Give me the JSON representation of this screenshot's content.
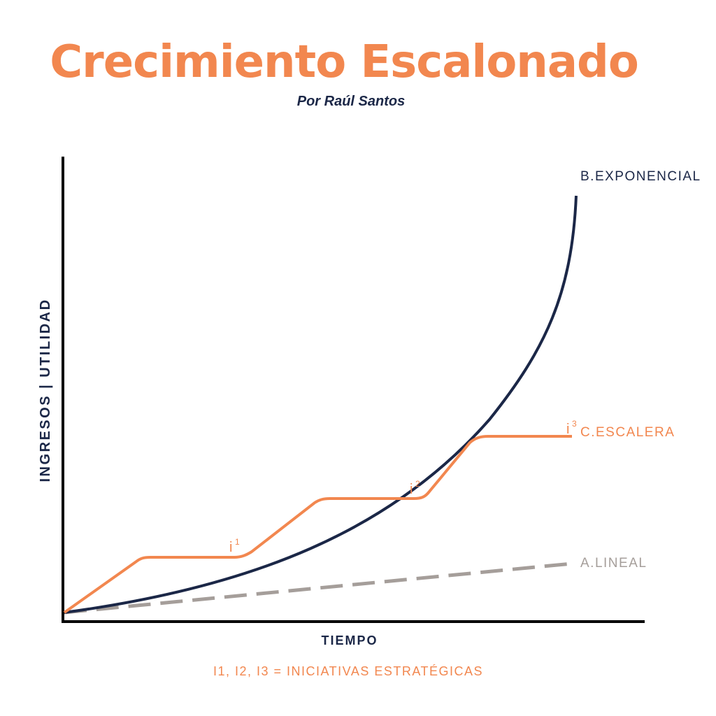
{
  "title": "Crecimiento Escalonado",
  "subtitle": "Por Raúl Santos",
  "colors": {
    "orange": "#f2874f",
    "navy": "#1b2747",
    "gray": "#a59e9a"
  },
  "axes": {
    "y_label": "INGRESOS | UTILIDAD",
    "x_label": "TIEMPO"
  },
  "series": {
    "exponential": "B.EXPONENCIAL",
    "staircase": "C.ESCALERA",
    "linear": "A.LINEAL"
  },
  "markers": {
    "i1": {
      "base": "i",
      "sup": "1"
    },
    "i2": {
      "base": "i",
      "sup": "2"
    },
    "i3": {
      "base": "i",
      "sup": "3"
    }
  },
  "footnote": "I1, I2, I3 = INICIATIVAS ESTRATÉGICAS"
}
